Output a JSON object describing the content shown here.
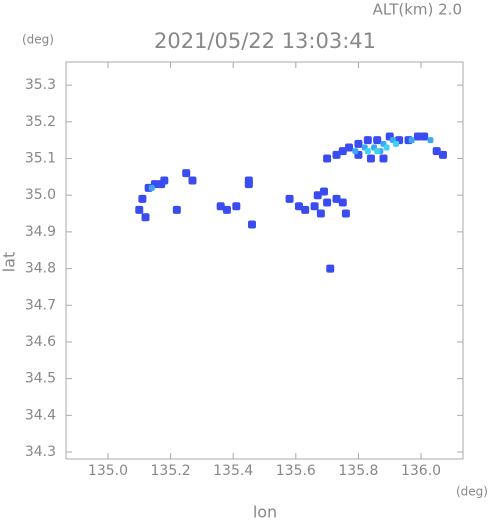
{
  "chart_data": {
    "type": "scatter",
    "title": "2021/05/22 13:03:41",
    "subtitle": "ALT(km)  2.0",
    "x_label": "lon",
    "y_label": "lat",
    "x_unit": "(deg)",
    "y_unit": "(deg)",
    "xlim": [
      134.866,
      136.134
    ],
    "ylim": [
      34.281,
      35.363
    ],
    "xticks": [
      {
        "value": 135,
        "label": "135.0"
      },
      135.2,
      135.4,
      135.6,
      135.8,
      {
        "value": 136,
        "label": "136.0"
      }
    ],
    "yticks": [
      34.3,
      34.4,
      34.5,
      34.6,
      34.7,
      34.8,
      34.9,
      {
        "value": 35,
        "label": "35.0"
      },
      35.1,
      35.2,
      35.3
    ],
    "series": [
      {
        "color": "#3a4cf0",
        "x": [
          135.1,
          135.11,
          135.13,
          135.15,
          135.17,
          135.12,
          135.27,
          135.25,
          135.18,
          135.36,
          135.38,
          135.41,
          135.45,
          135.45,
          135.46,
          135.22,
          135.58,
          135.61,
          135.63,
          135.66,
          135.67,
          135.69,
          135.7,
          135.68,
          135.73,
          135.75,
          135.76,
          135.71,
          135.7,
          135.73,
          135.75,
          135.77,
          135.8,
          135.83,
          135.86,
          135.9,
          135.93,
          135.88,
          135.84,
          135.8,
          135.96,
          135.99,
          136.01,
          136.05,
          136.07
        ],
        "values": [
          34.96,
          34.99,
          35.02,
          35.03,
          35.03,
          34.94,
          35.04,
          35.06,
          35.04,
          34.97,
          34.96,
          34.97,
          35.04,
          35.03,
          34.92,
          34.96,
          34.99,
          34.97,
          34.96,
          34.97,
          35.0,
          35.01,
          34.98,
          34.95,
          34.99,
          34.98,
          34.95,
          34.8,
          35.1,
          35.11,
          35.12,
          35.13,
          35.14,
          35.15,
          35.15,
          35.16,
          35.15,
          35.1,
          35.1,
          35.11,
          35.15,
          35.16,
          35.16,
          35.12,
          35.11
        ]
      },
      {
        "color": "#3aa8f5",
        "x": [
          135.14,
          135.79,
          135.82,
          135.85,
          135.88,
          135.91,
          135.87,
          136.03,
          135.97
        ],
        "values": [
          35.02,
          35.12,
          35.13,
          35.13,
          35.14,
          35.15,
          35.12,
          35.15,
          35.15
        ]
      },
      {
        "color": "#40d0f0",
        "x": [
          135.83,
          135.86,
          135.89,
          135.92
        ],
        "values": [
          35.12,
          35.12,
          35.13,
          35.14
        ]
      }
    ]
  }
}
